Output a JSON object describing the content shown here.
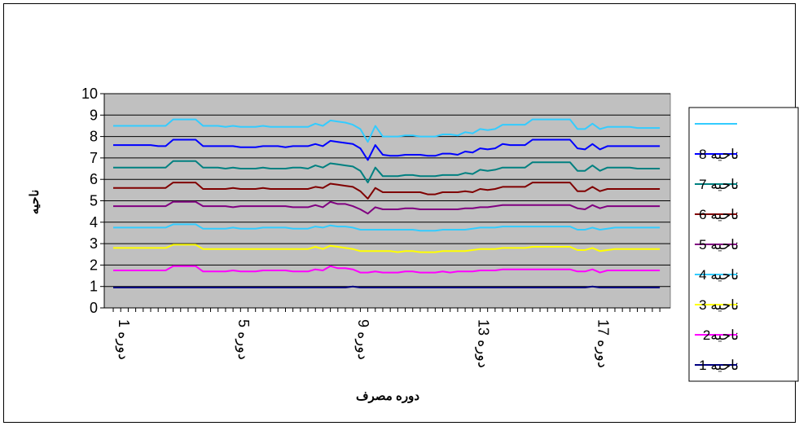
{
  "chart_data": {
    "type": "line",
    "title": "",
    "xlabel": "دوره مصرف",
    "ylabel": "ناحیه",
    "ylim": [
      0,
      10
    ],
    "yticks": [
      "0",
      "1",
      "2",
      "3",
      "4",
      "5",
      "6",
      "7",
      "8",
      "9",
      "10"
    ],
    "x_tick_labels": [
      "دوره 1",
      "دوره 5",
      "دوره 9",
      "دوره 13",
      "دوره 17"
    ],
    "x_tick_positions": [
      1,
      5,
      9,
      13,
      17
    ],
    "xlim": [
      0.7,
      19.6
    ],
    "grid": true,
    "background": "#c0c0c0",
    "legend_position": "right",
    "x": [
      1,
      1.25,
      1.5,
      1.75,
      2,
      2.25,
      2.5,
      2.75,
      3,
      3.25,
      3.5,
      3.75,
      4,
      4.25,
      4.5,
      4.75,
      5,
      5.25,
      5.5,
      5.75,
      6,
      6.25,
      6.5,
      6.75,
      7,
      7.25,
      7.5,
      7.75,
      8,
      8.25,
      8.5,
      8.75,
      9,
      9.25,
      9.5,
      9.75,
      10,
      10.25,
      10.5,
      10.75,
      11,
      11.25,
      11.5,
      11.75,
      12,
      12.25,
      12.5,
      12.75,
      13,
      13.25,
      13.5,
      13.75,
      14,
      14.25,
      14.5,
      14.75,
      15,
      15.25,
      15.5,
      15.75,
      16,
      16.25,
      16.5,
      16.75,
      17,
      17.25,
      17.5,
      17.75,
      18,
      18.25,
      18.5,
      18.75,
      19,
      19.25
    ],
    "series": [
      {
        "name": "ناحیه 1",
        "color": "#000080",
        "values": [
          0.95,
          0.95,
          0.95,
          0.95,
          0.95,
          0.95,
          0.95,
          0.95,
          0.95,
          0.95,
          0.95,
          0.95,
          0.95,
          0.95,
          0.95,
          0.95,
          0.95,
          0.95,
          0.95,
          0.95,
          0.95,
          0.95,
          0.95,
          0.95,
          0.95,
          0.95,
          0.95,
          0.95,
          0.95,
          0.95,
          0.95,
          0.95,
          1.0,
          0.95,
          0.95,
          0.95,
          0.95,
          0.95,
          0.95,
          0.95,
          0.95,
          0.95,
          0.95,
          0.95,
          0.95,
          0.95,
          0.95,
          0.95,
          0.95,
          0.95,
          0.95,
          0.95,
          0.95,
          0.95,
          0.95,
          0.95,
          0.95,
          0.95,
          0.95,
          0.95,
          0.95,
          0.95,
          0.95,
          0.95,
          1.0,
          0.95,
          0.95,
          0.95,
          0.95,
          0.95,
          0.95,
          0.95,
          0.95,
          0.95
        ]
      },
      {
        "name": "ناحیه2",
        "color": "#ff00ff",
        "values": [
          1.75,
          1.75,
          1.75,
          1.75,
          1.75,
          1.75,
          1.75,
          1.75,
          1.95,
          1.95,
          1.95,
          1.95,
          1.7,
          1.7,
          1.7,
          1.7,
          1.75,
          1.7,
          1.7,
          1.7,
          1.75,
          1.75,
          1.75,
          1.75,
          1.7,
          1.7,
          1.7,
          1.8,
          1.75,
          1.95,
          1.85,
          1.85,
          1.8,
          1.65,
          1.65,
          1.7,
          1.65,
          1.65,
          1.65,
          1.7,
          1.7,
          1.65,
          1.65,
          1.65,
          1.7,
          1.65,
          1.7,
          1.7,
          1.7,
          1.75,
          1.75,
          1.75,
          1.8,
          1.8,
          1.8,
          1.8,
          1.8,
          1.8,
          1.8,
          1.8,
          1.8,
          1.8,
          1.7,
          1.7,
          1.8,
          1.65,
          1.75,
          1.75,
          1.75,
          1.75,
          1.75,
          1.75,
          1.75,
          1.75
        ]
      },
      {
        "name": "ناحیه 3",
        "color": "#ffff00",
        "values": [
          2.8,
          2.8,
          2.8,
          2.8,
          2.8,
          2.8,
          2.8,
          2.8,
          2.95,
          2.95,
          2.95,
          2.95,
          2.75,
          2.75,
          2.75,
          2.75,
          2.75,
          2.75,
          2.75,
          2.75,
          2.75,
          2.75,
          2.75,
          2.75,
          2.75,
          2.75,
          2.75,
          2.85,
          2.75,
          2.9,
          2.85,
          2.8,
          2.75,
          2.65,
          2.65,
          2.65,
          2.65,
          2.65,
          2.6,
          2.65,
          2.65,
          2.6,
          2.6,
          2.6,
          2.65,
          2.65,
          2.65,
          2.65,
          2.7,
          2.75,
          2.75,
          2.75,
          2.8,
          2.8,
          2.8,
          2.8,
          2.85,
          2.85,
          2.85,
          2.85,
          2.85,
          2.85,
          2.7,
          2.7,
          2.8,
          2.65,
          2.7,
          2.75,
          2.75,
          2.75,
          2.75,
          2.75,
          2.75,
          2.75
        ]
      },
      {
        "name": "ناحیه 4",
        "color": "#33ccff",
        "values": [
          3.75,
          3.75,
          3.75,
          3.75,
          3.75,
          3.75,
          3.75,
          3.75,
          3.9,
          3.9,
          3.9,
          3.9,
          3.7,
          3.7,
          3.7,
          3.7,
          3.75,
          3.7,
          3.7,
          3.7,
          3.75,
          3.75,
          3.75,
          3.75,
          3.7,
          3.7,
          3.7,
          3.8,
          3.75,
          3.85,
          3.8,
          3.8,
          3.75,
          3.65,
          3.65,
          3.65,
          3.65,
          3.65,
          3.65,
          3.65,
          3.65,
          3.6,
          3.6,
          3.6,
          3.65,
          3.65,
          3.65,
          3.65,
          3.7,
          3.75,
          3.75,
          3.75,
          3.8,
          3.8,
          3.8,
          3.8,
          3.8,
          3.8,
          3.8,
          3.8,
          3.8,
          3.8,
          3.65,
          3.65,
          3.75,
          3.65,
          3.7,
          3.75,
          3.75,
          3.75,
          3.75,
          3.75,
          3.75,
          3.75
        ]
      },
      {
        "name": "ناحیه 5",
        "color": "#800080",
        "values": [
          4.75,
          4.75,
          4.75,
          4.75,
          4.75,
          4.75,
          4.75,
          4.75,
          4.95,
          4.95,
          4.95,
          4.95,
          4.75,
          4.75,
          4.75,
          4.75,
          4.7,
          4.75,
          4.75,
          4.75,
          4.75,
          4.75,
          4.75,
          4.75,
          4.7,
          4.7,
          4.7,
          4.8,
          4.7,
          4.95,
          4.85,
          4.85,
          4.75,
          4.6,
          4.4,
          4.7,
          4.6,
          4.6,
          4.6,
          4.65,
          4.65,
          4.6,
          4.6,
          4.6,
          4.6,
          4.6,
          4.6,
          4.65,
          4.65,
          4.7,
          4.7,
          4.75,
          4.8,
          4.8,
          4.8,
          4.8,
          4.8,
          4.8,
          4.8,
          4.8,
          4.8,
          4.8,
          4.65,
          4.6,
          4.8,
          4.65,
          4.75,
          4.75,
          4.75,
          4.75,
          4.75,
          4.75,
          4.75,
          4.75
        ]
      },
      {
        "name": "ناحیه 6",
        "color": "#800000",
        "values": [
          5.6,
          5.6,
          5.6,
          5.6,
          5.6,
          5.6,
          5.6,
          5.6,
          5.85,
          5.85,
          5.85,
          5.85,
          5.55,
          5.55,
          5.55,
          5.55,
          5.6,
          5.55,
          5.55,
          5.55,
          5.6,
          5.55,
          5.55,
          5.55,
          5.55,
          5.55,
          5.55,
          5.65,
          5.6,
          5.8,
          5.75,
          5.7,
          5.65,
          5.45,
          5.1,
          5.6,
          5.4,
          5.4,
          5.4,
          5.4,
          5.4,
          5.4,
          5.3,
          5.3,
          5.4,
          5.4,
          5.4,
          5.45,
          5.4,
          5.55,
          5.5,
          5.55,
          5.65,
          5.65,
          5.65,
          5.65,
          5.85,
          5.85,
          5.85,
          5.85,
          5.85,
          5.85,
          5.45,
          5.45,
          5.65,
          5.45,
          5.55,
          5.55,
          5.55,
          5.55,
          5.55,
          5.55,
          5.55,
          5.55
        ]
      },
      {
        "name": "ناحیه 7",
        "color": "#008080",
        "values": [
          6.55,
          6.55,
          6.55,
          6.55,
          6.55,
          6.55,
          6.55,
          6.55,
          6.85,
          6.85,
          6.85,
          6.85,
          6.55,
          6.55,
          6.55,
          6.5,
          6.55,
          6.5,
          6.5,
          6.5,
          6.55,
          6.5,
          6.5,
          6.5,
          6.55,
          6.55,
          6.5,
          6.65,
          6.55,
          6.75,
          6.7,
          6.65,
          6.6,
          6.4,
          5.85,
          6.55,
          6.15,
          6.15,
          6.15,
          6.2,
          6.2,
          6.15,
          6.15,
          6.15,
          6.2,
          6.2,
          6.2,
          6.3,
          6.25,
          6.45,
          6.4,
          6.45,
          6.55,
          6.55,
          6.55,
          6.55,
          6.8,
          6.8,
          6.8,
          6.8,
          6.8,
          6.8,
          6.4,
          6.4,
          6.65,
          6.4,
          6.55,
          6.55,
          6.55,
          6.55,
          6.5,
          6.5,
          6.5,
          6.5
        ]
      },
      {
        "name": "ناحیه 8",
        "color": "#0000ff",
        "values": [
          7.6,
          7.6,
          7.6,
          7.6,
          7.6,
          7.6,
          7.55,
          7.55,
          7.85,
          7.85,
          7.85,
          7.85,
          7.55,
          7.55,
          7.55,
          7.55,
          7.55,
          7.5,
          7.5,
          7.5,
          7.55,
          7.55,
          7.55,
          7.5,
          7.55,
          7.55,
          7.55,
          7.65,
          7.55,
          7.8,
          7.75,
          7.7,
          7.65,
          7.45,
          6.9,
          7.6,
          7.15,
          7.1,
          7.1,
          7.15,
          7.15,
          7.15,
          7.1,
          7.1,
          7.2,
          7.2,
          7.15,
          7.3,
          7.25,
          7.45,
          7.4,
          7.45,
          7.65,
          7.6,
          7.6,
          7.6,
          7.85,
          7.85,
          7.85,
          7.85,
          7.85,
          7.85,
          7.45,
          7.4,
          7.65,
          7.4,
          7.55,
          7.55,
          7.55,
          7.55,
          7.55,
          7.55,
          7.55,
          7.55
        ]
      },
      {
        "name": "",
        "color": "#33ccff",
        "values": [
          8.5,
          8.5,
          8.5,
          8.5,
          8.5,
          8.5,
          8.5,
          8.5,
          8.8,
          8.8,
          8.8,
          8.8,
          8.5,
          8.5,
          8.5,
          8.45,
          8.5,
          8.45,
          8.45,
          8.45,
          8.5,
          8.45,
          8.45,
          8.45,
          8.45,
          8.45,
          8.45,
          8.6,
          8.5,
          8.75,
          8.7,
          8.65,
          8.55,
          8.35,
          7.75,
          8.5,
          8.0,
          8.0,
          8.0,
          8.05,
          8.05,
          8.0,
          8.0,
          8.0,
          8.1,
          8.1,
          8.05,
          8.2,
          8.15,
          8.35,
          8.3,
          8.35,
          8.55,
          8.55,
          8.55,
          8.55,
          8.8,
          8.8,
          8.8,
          8.8,
          8.8,
          8.8,
          8.35,
          8.35,
          8.6,
          8.35,
          8.45,
          8.45,
          8.45,
          8.45,
          8.4,
          8.4,
          8.4,
          8.4
        ]
      }
    ],
    "legend_order": [
      8,
      7,
      6,
      5,
      4,
      3,
      2,
      1,
      0
    ]
  }
}
